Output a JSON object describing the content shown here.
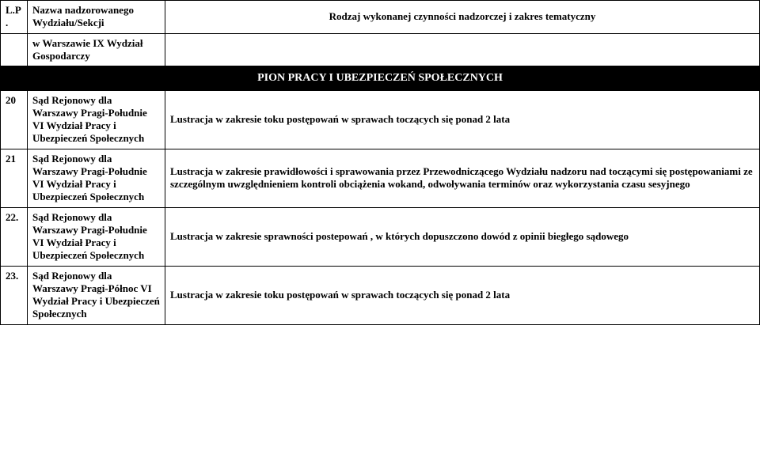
{
  "header": {
    "lp_line1": "L.P",
    "lp_line2": ".",
    "name_line1": "Nazwa nadzorowanego",
    "name_line2": "Wydziału/Sekcji",
    "desc": "Rodzaj wykonanej czynności nadzorczej i zakres tematyczny"
  },
  "context_row": {
    "name": "w Warszawie IX Wydział Gospodarczy",
    "desc": ""
  },
  "section_bar": "PION PRACY I UBEZPIECZEŃ SPOŁECZNYCH",
  "rows": [
    {
      "lp": "20",
      "name": "Sąd Rejonowy dla Warszawy Pragi-Południe VI Wydział Pracy i Ubezpieczeń Społecznych",
      "desc": "Lustracja w zakresie toku postępowań w sprawach toczących się ponad 2 lata"
    },
    {
      "lp": "21",
      "name": "Sąd Rejonowy dla Warszawy Pragi-Południe VI Wydział Pracy i Ubezpieczeń Społecznych",
      "desc": "Lustracja w zakresie prawidłowości i sprawowania przez Przewodniczącego Wydziału nadzoru nad toczącymi się postępowaniami ze szczególnym uwzględnieniem kontroli obciążenia wokand, odwoływania terminów oraz wykorzystania czasu sesyjnego"
    },
    {
      "lp": "22.",
      "name": "Sąd Rejonowy dla Warszawy Pragi-Południe VI Wydział Pracy i Ubezpieczeń Społecznych",
      "desc": "Lustracja w zakresie sprawności postepowań , w których dopuszczono dowód z opinii biegłego sądowego"
    },
    {
      "lp": "23.",
      "name": "Sąd Rejonowy dla Warszawy Pragi-Północ VI Wydział Pracy i Ubezpieczeń Społecznych",
      "desc": "Lustracja w zakresie toku postępowań w sprawach toczących się ponad 2 lata"
    }
  ]
}
